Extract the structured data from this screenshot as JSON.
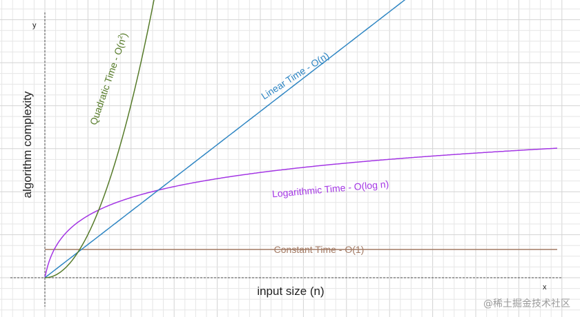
{
  "chart_data": {
    "type": "line",
    "xlabel": "input size (n)",
    "ylabel": "algorithm complexity",
    "x_axis_letter": "x",
    "y_axis_letter": "y",
    "grid": true,
    "series": [
      {
        "name": "Constant Time - O(1)",
        "label_text": "Constant Time - O(1)",
        "color": "#a27a64",
        "fn": "constant"
      },
      {
        "name": "Logarithmic Time - O(log n)",
        "label_text": "Logarithmic Time - O(log n)",
        "color": "#a335e4",
        "fn": "log"
      },
      {
        "name": "Linear Time - O(n)",
        "label_text": "Linear Time - O(n)",
        "color": "#2f86c3",
        "fn": "linear"
      },
      {
        "name": "Quadratic Time - O(n²)",
        "label_text": "Quadratic Time - O(n",
        "label_sup": "2",
        "label_close": ")",
        "color": "#557a28",
        "fn": "quadratic"
      }
    ]
  },
  "watermark": "@稀土掘金技术社区",
  "colors": {
    "grid_minor": "#e6e6e6",
    "grid_major": "#d3d3d3",
    "axis": "#444444"
  }
}
